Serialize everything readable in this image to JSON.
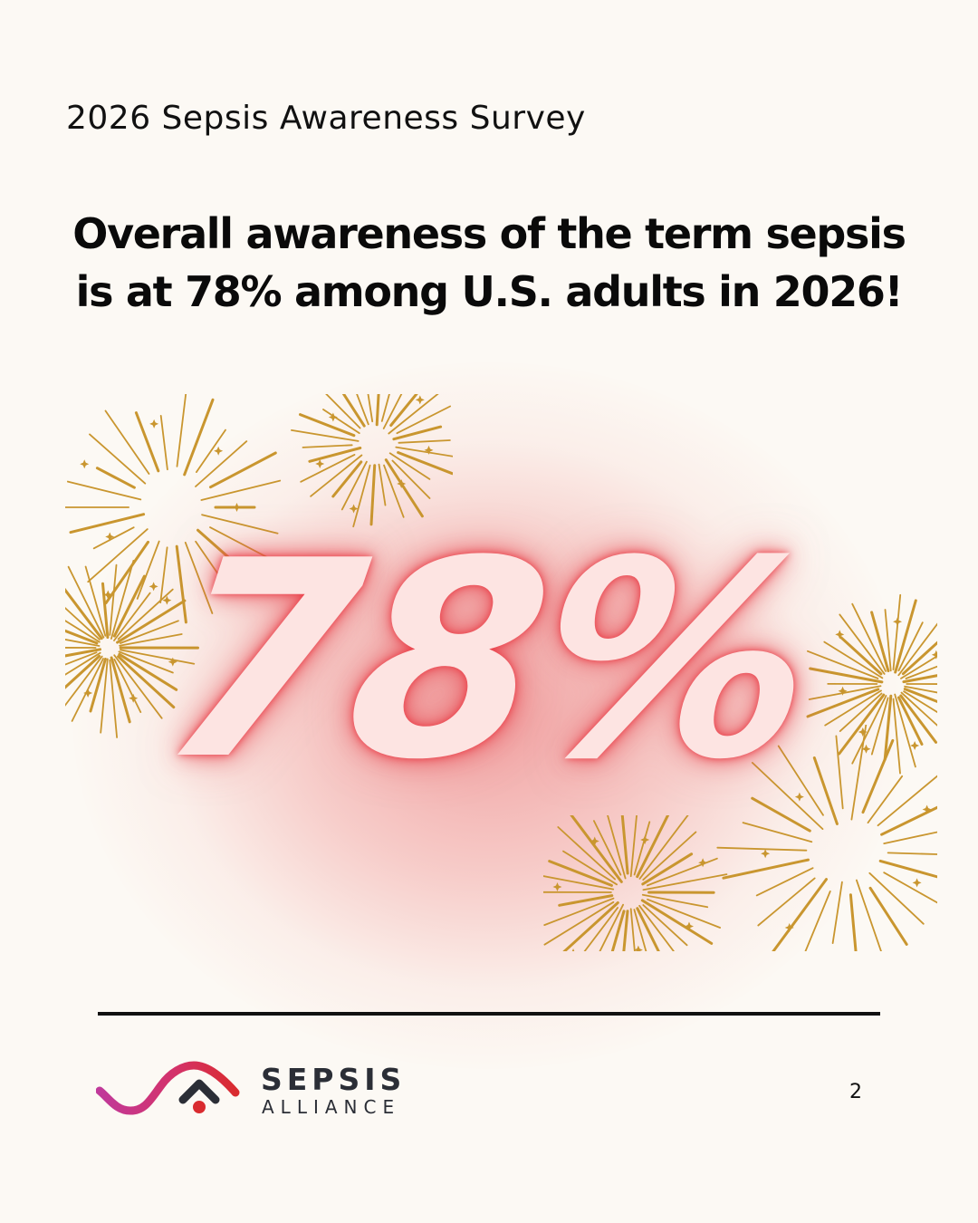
{
  "header": {
    "survey_title": "2026 Sepsis Awareness Survey"
  },
  "headline": {
    "line1": "Overall awareness of the term sepsis",
    "line2": "is at 78% among U.S. adults in 2026!"
  },
  "stat": {
    "value_text": "78%",
    "value": 78
  },
  "footer": {
    "logo_word1": "SEPSIS",
    "logo_word2": "ALLIANCE",
    "page_number": "2"
  },
  "colors": {
    "background": "#fcf9f4",
    "text": "#111111",
    "glow": "#e8585e",
    "number_fill": "#fde4e2",
    "firework_gold": "#c9962f",
    "logo_red": "#d92b2f",
    "logo_magenta": "#c0399a",
    "logo_dark": "#2b2e36"
  },
  "icons": {
    "decoration": "firework-bursts",
    "logo": "sepsis-alliance-logo"
  }
}
